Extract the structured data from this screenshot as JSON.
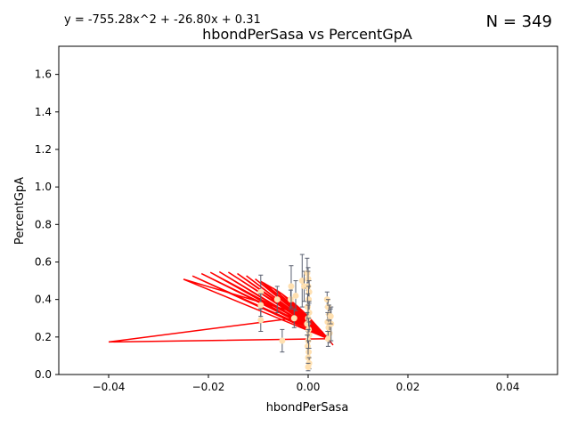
{
  "header": {
    "equation": "y = -755.28x^2 + -26.80x + 0.31",
    "count": "N = 349"
  },
  "chart_data": {
    "type": "scatter",
    "title": "hbondPerSasa vs PercentGpA",
    "xlabel": "hbondPerSasa",
    "ylabel": "PercentGpA",
    "xlim": [
      -0.05,
      0.05
    ],
    "ylim": [
      0.0,
      1.75
    ],
    "xticks": [
      -0.04,
      -0.02,
      0.0,
      0.02,
      0.04
    ],
    "xtick_labels": [
      "−0.04",
      "−0.02",
      "0.00",
      "0.02",
      "0.04"
    ],
    "yticks": [
      0.0,
      0.2,
      0.4,
      0.6,
      0.8,
      1.0,
      1.2,
      1.4,
      1.6
    ],
    "ytick_labels": [
      "0.0",
      "0.2",
      "0.4",
      "0.6",
      "0.8",
      "1.0",
      "1.2",
      "1.4",
      "1.6"
    ],
    "grid": false,
    "colors": {
      "points": "#ffe0b0",
      "errorbars": "#5a6070",
      "fit_line": "#ff0000"
    },
    "fit": {
      "a": -755.28,
      "b": -26.8,
      "c": 0.31
    },
    "series": [
      {
        "points": [
          {
            "x": -0.0095,
            "y": 0.44,
            "err": 0.09
          },
          {
            "x": -0.0095,
            "y": 0.37,
            "err": 0.06
          },
          {
            "x": -0.0095,
            "y": 0.29,
            "err": 0.06
          },
          {
            "x": -0.0062,
            "y": 0.4,
            "err": 0.07
          },
          {
            "x": -0.0052,
            "y": 0.18,
            "err": 0.06
          },
          {
            "x": -0.0035,
            "y": 0.4,
            "err": 0.05
          },
          {
            "x": -0.0034,
            "y": 0.47,
            "err": 0.11
          },
          {
            "x": -0.0028,
            "y": 0.3,
            "err": 0.05
          },
          {
            "x": -0.0025,
            "y": 0.42,
            "err": 0.08
          },
          {
            "x": -0.0012,
            "y": 0.5,
            "err": 0.14
          },
          {
            "x": -0.0008,
            "y": 0.47,
            "err": 0.08
          },
          {
            "x": -0.0002,
            "y": 0.54,
            "err": 0.08
          },
          {
            "x": 0.0,
            "y": 0.51,
            "err": 0.06
          },
          {
            "x": 0.0,
            "y": 0.47,
            "err": 0.08
          },
          {
            "x": 0.0002,
            "y": 0.44,
            "err": 0.06
          },
          {
            "x": 0.0001,
            "y": 0.4,
            "err": 0.07
          },
          {
            "x": -0.0001,
            "y": 0.36,
            "err": 0.07
          },
          {
            "x": 0.0002,
            "y": 0.33,
            "err": 0.06
          },
          {
            "x": 0.0,
            "y": 0.3,
            "err": 0.07
          },
          {
            "x": -0.0002,
            "y": 0.27,
            "err": 0.06
          },
          {
            "x": 0.0001,
            "y": 0.24,
            "err": 0.06
          },
          {
            "x": 0.0002,
            "y": 0.21,
            "err": 0.07
          },
          {
            "x": 0.0,
            "y": 0.18,
            "err": 0.06
          },
          {
            "x": -0.0001,
            "y": 0.15,
            "err": 0.06
          },
          {
            "x": 0.0001,
            "y": 0.12,
            "err": 0.06
          },
          {
            "x": 0.0,
            "y": 0.09,
            "err": 0.05
          },
          {
            "x": 0.0002,
            "y": 0.06,
            "err": 0.03
          },
          {
            "x": 0.0,
            "y": 0.04,
            "err": 0.02
          },
          {
            "x": 0.0038,
            "y": 0.4,
            "err": 0.04
          },
          {
            "x": 0.004,
            "y": 0.36,
            "err": 0.04
          },
          {
            "x": 0.0042,
            "y": 0.32,
            "err": 0.05
          },
          {
            "x": 0.0039,
            "y": 0.28,
            "err": 0.05
          },
          {
            "x": 0.0041,
            "y": 0.25,
            "err": 0.04
          },
          {
            "x": 0.0043,
            "y": 0.22,
            "err": 0.05
          },
          {
            "x": 0.004,
            "y": 0.19,
            "err": 0.04
          },
          {
            "x": 0.0046,
            "y": 0.27,
            "err": 0.09
          },
          {
            "x": 0.0045,
            "y": 0.31,
            "err": 0.04
          }
        ]
      }
    ]
  }
}
